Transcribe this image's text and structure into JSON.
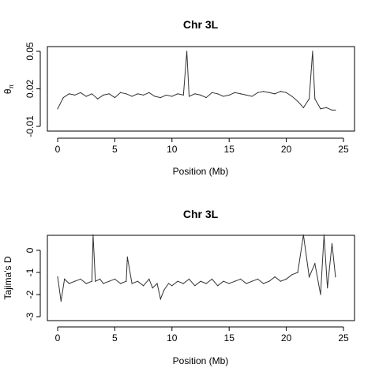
{
  "chart_data": [
    {
      "type": "line",
      "title": "Chr 3L",
      "xlabel": "Position (Mb)",
      "ylabel": "θπ",
      "ylabel_main": "θ",
      "ylabel_sub": "π",
      "xlim": [
        0,
        25
      ],
      "ylim": [
        -0.01,
        0.05
      ],
      "xticks": [
        0,
        5,
        10,
        15,
        20,
        25
      ],
      "yticks": [
        -0.01,
        0.02,
        0.05
      ],
      "ytick_labels": [
        "-0.01",
        "0.02",
        "0.05"
      ],
      "grid": false,
      "line_color": "#333333",
      "series": [
        {
          "values_note_free": true,
          "x": [
            0.0,
            0.5,
            1.0,
            1.5,
            2.0,
            2.5,
            3.0,
            3.5,
            4.0,
            4.5,
            5.0,
            5.5,
            6.0,
            6.5,
            7.0,
            7.5,
            8.0,
            8.5,
            9.0,
            9.5,
            10.0,
            10.5,
            11.0,
            11.3,
            11.5,
            12.0,
            12.5,
            13.0,
            13.5,
            14.0,
            14.5,
            15.0,
            15.5,
            16.0,
            16.5,
            17.0,
            17.5,
            18.0,
            18.5,
            19.0,
            19.5,
            20.0,
            20.5,
            21.0,
            21.5,
            22.0,
            22.3,
            22.5,
            23.0,
            23.5,
            24.0,
            24.3
          ],
          "y": [
            0.004,
            0.013,
            0.016,
            0.015,
            0.017,
            0.014,
            0.016,
            0.012,
            0.015,
            0.016,
            0.013,
            0.017,
            0.016,
            0.014,
            0.016,
            0.015,
            0.017,
            0.014,
            0.013,
            0.015,
            0.014,
            0.016,
            0.015,
            0.05,
            0.014,
            0.016,
            0.015,
            0.013,
            0.017,
            0.016,
            0.014,
            0.015,
            0.017,
            0.016,
            0.015,
            0.014,
            0.017,
            0.018,
            0.017,
            0.016,
            0.018,
            0.017,
            0.014,
            0.01,
            0.005,
            0.012,
            0.05,
            0.012,
            0.004,
            0.005,
            0.003,
            0.003
          ]
        }
      ]
    },
    {
      "type": "line",
      "title": "Chr 3L",
      "xlabel": "Position (Mb)",
      "ylabel": "Tajima's D",
      "xlim": [
        0,
        25
      ],
      "ylim": [
        -3,
        0.5
      ],
      "xticks": [
        0,
        5,
        10,
        15,
        20,
        25
      ],
      "yticks": [
        -3,
        -2,
        -1,
        0
      ],
      "ytick_labels": [
        "-3",
        "-2",
        "-1",
        "0"
      ],
      "grid": false,
      "line_color": "#333333",
      "series": [
        {
          "x": [
            0.0,
            0.3,
            0.6,
            1.0,
            1.5,
            2.0,
            2.5,
            3.0,
            3.1,
            3.3,
            3.7,
            4.0,
            4.5,
            5.0,
            5.5,
            6.0,
            6.1,
            6.5,
            7.0,
            7.5,
            8.0,
            8.3,
            8.7,
            9.0,
            9.3,
            9.7,
            10.0,
            10.5,
            11.0,
            11.5,
            12.0,
            12.5,
            13.0,
            13.5,
            14.0,
            14.5,
            15.0,
            15.5,
            16.0,
            16.5,
            17.0,
            17.5,
            18.0,
            18.5,
            19.0,
            19.5,
            20.0,
            20.5,
            21.0,
            21.5,
            22.0,
            22.5,
            23.0,
            23.3,
            23.6,
            24.0,
            24.3
          ],
          "y": [
            -1.2,
            -2.3,
            -1.3,
            -1.5,
            -1.4,
            -1.3,
            -1.5,
            -1.4,
            0.7,
            -1.4,
            -1.3,
            -1.5,
            -1.4,
            -1.3,
            -1.5,
            -1.4,
            -0.3,
            -1.5,
            -1.4,
            -1.6,
            -1.3,
            -1.7,
            -1.5,
            -2.2,
            -1.8,
            -1.5,
            -1.6,
            -1.4,
            -1.5,
            -1.3,
            -1.6,
            -1.4,
            -1.5,
            -1.3,
            -1.6,
            -1.4,
            -1.5,
            -1.4,
            -1.3,
            -1.5,
            -1.4,
            -1.3,
            -1.5,
            -1.4,
            -1.2,
            -1.4,
            -1.3,
            -1.1,
            -1.0,
            0.7,
            -1.2,
            -0.6,
            -2.0,
            0.7,
            -1.7,
            0.3,
            -1.2
          ]
        }
      ]
    }
  ]
}
